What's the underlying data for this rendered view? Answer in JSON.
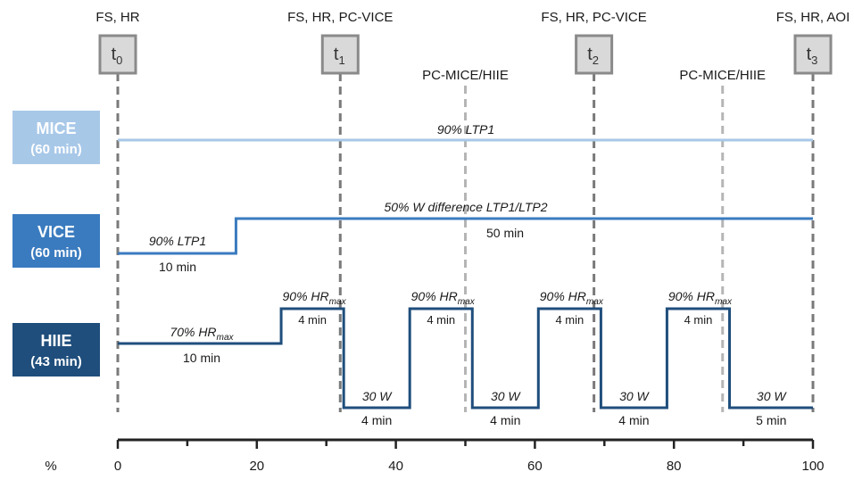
{
  "timepoints": [
    {
      "id": "t0",
      "base": "t",
      "sub": "0",
      "label": "FS, HR",
      "pct": 0
    },
    {
      "id": "t1",
      "base": "t",
      "sub": "1",
      "label": "FS, HR, PC-VICE",
      "pct": 32
    },
    {
      "id": "t2",
      "base": "t",
      "sub": "2",
      "label": "FS, HR, PC-VICE",
      "pct": 68.5
    },
    {
      "id": "t3",
      "base": "t",
      "sub": "3",
      "label": "FS, HR, AOI",
      "pct": 100
    }
  ],
  "pc_markers": [
    {
      "label": "PC-MICE/HIIE",
      "pct": 50
    },
    {
      "label": "PC-MICE/HIIE",
      "pct": 87
    }
  ],
  "conditions": {
    "mice": {
      "name": "MICE",
      "duration": "(60 min)",
      "color": "#a8c8e8",
      "line_color": "#a8c8e8",
      "intensity": "90% LTP1"
    },
    "vice": {
      "name": "VICE",
      "duration": "(60 min)",
      "color": "#3a7bbf",
      "line_color": "#3a7bbf",
      "warm_intensity": "90% LTP1",
      "warm_time": "10 min",
      "main_intensity": "50% W difference LTP1/LTP2",
      "main_time": "50 min",
      "step_pct": 17
    },
    "hiie": {
      "name": "HIIE",
      "duration": "(43 min)",
      "color": "#1f4e7c",
      "line_color": "#1f4e7c",
      "warm_prefix": "70% HR",
      "warm_sub": "max",
      "warm_time": "10 min",
      "high_prefix": "90% HR",
      "high_sub": "max",
      "high_time": "4 min",
      "low_label": "30 W",
      "low_time_a": "4 min",
      "low_time_b": "5 min"
    }
  },
  "hiie_intervals": [
    {
      "start": 23.5,
      "end": 32.5
    },
    {
      "start": 42,
      "end": 51
    },
    {
      "start": 60.5,
      "end": 69.5
    },
    {
      "start": 79,
      "end": 88
    }
  ],
  "axis": {
    "unit": "%",
    "ticks": [
      0,
      20,
      40,
      60,
      80,
      100
    ]
  },
  "colors": {
    "dash": "#7a7a7a",
    "dash_light": "#b5b5b5",
    "box_fill": "#d9d9d9",
    "box_border": "#8a8a8a",
    "axis": "#222222"
  }
}
